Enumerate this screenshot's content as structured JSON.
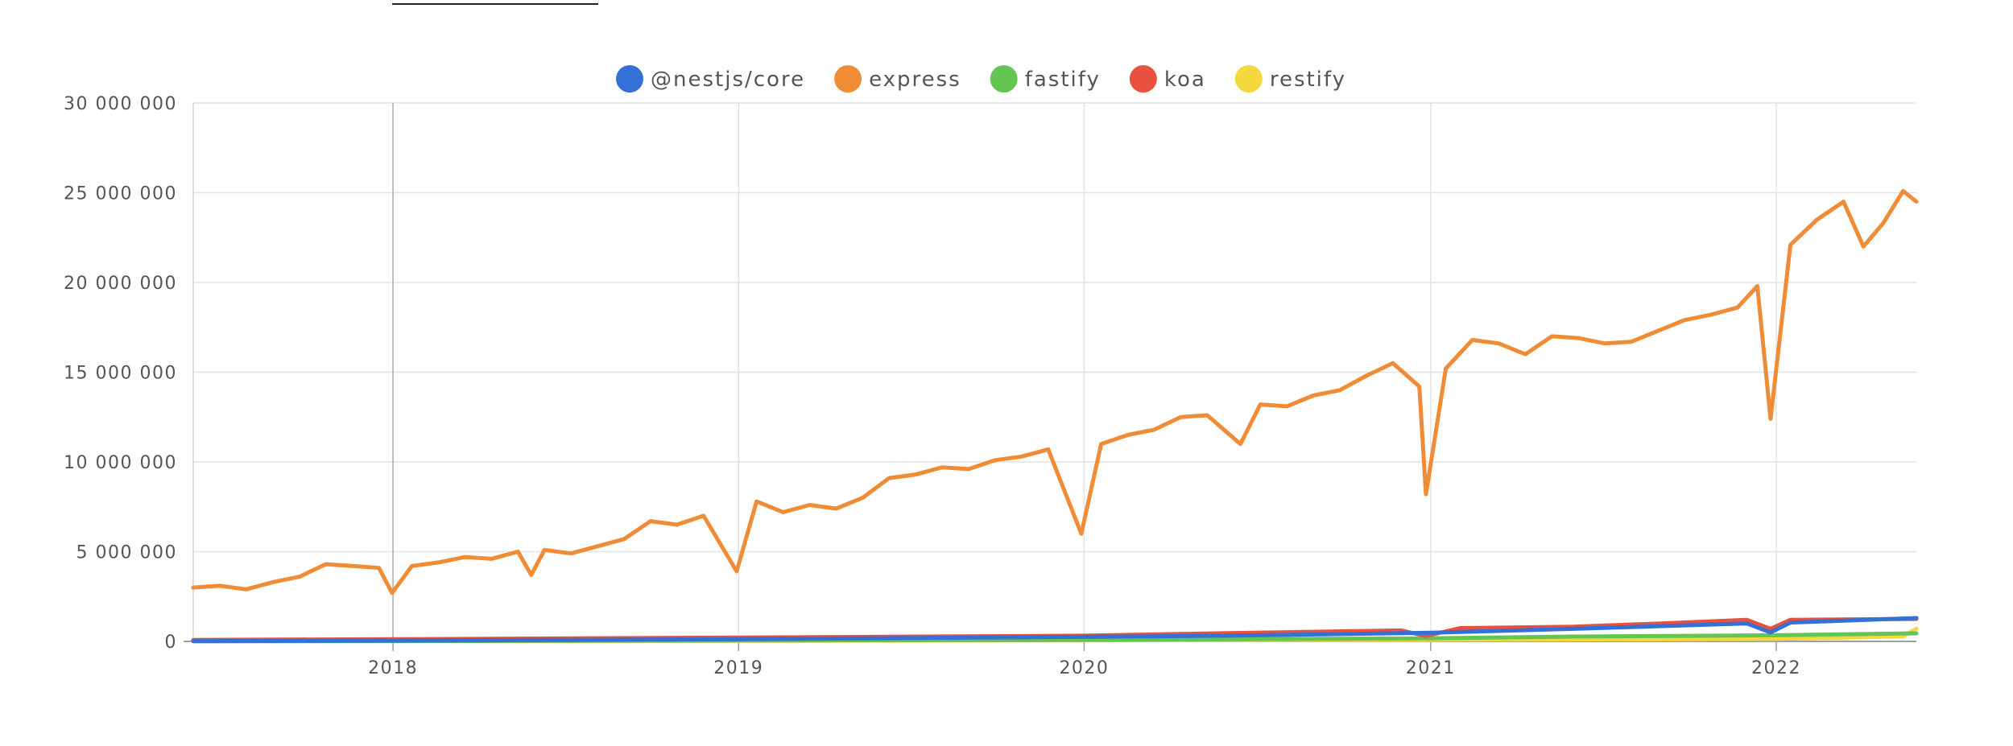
{
  "chart_data": {
    "type": "line",
    "title": "",
    "xlabel": "",
    "ylabel": "",
    "ylim": [
      0,
      30000000
    ],
    "xlim": [
      "2017-06-04",
      "2022-05-29"
    ],
    "y_ticks": [
      0,
      5000000,
      10000000,
      15000000,
      20000000,
      25000000,
      30000000
    ],
    "y_tick_labels": [
      "0",
      "5 000 000",
      "10 000 000",
      "15 000 000",
      "20 000 000",
      "25 000 000",
      "30 000 000"
    ],
    "x_ticks": [
      "2018-01-01",
      "2019-01-01",
      "2020-01-01",
      "2021-01-01",
      "2022-01-01"
    ],
    "x_tick_labels": [
      "2018",
      "2019",
      "2020",
      "2021",
      "2022"
    ],
    "grid": true,
    "legend": "top",
    "series": [
      {
        "name": "@nestjs/core",
        "color": "#3371d6",
        "points": [
          [
            "2017-06-04",
            20000
          ],
          [
            "2018-01-01",
            40000
          ],
          [
            "2019-01-01",
            120000
          ],
          [
            "2020-01-01",
            250000
          ],
          [
            "2020-06-01",
            320000
          ],
          [
            "2021-01-01",
            480000
          ],
          [
            "2021-06-01",
            700000
          ],
          [
            "2021-12-01",
            1000000
          ],
          [
            "2021-12-26",
            500000
          ],
          [
            "2022-01-16",
            1050000
          ],
          [
            "2022-05-29",
            1300000
          ]
        ]
      },
      {
        "name": "express",
        "color": "#f08c36",
        "points": [
          [
            "2017-06-04",
            3000000
          ],
          [
            "2017-07-02",
            3100000
          ],
          [
            "2017-07-30",
            2900000
          ],
          [
            "2017-08-27",
            3300000
          ],
          [
            "2017-09-24",
            3600000
          ],
          [
            "2017-10-22",
            4300000
          ],
          [
            "2017-11-19",
            4200000
          ],
          [
            "2017-12-17",
            4100000
          ],
          [
            "2017-12-31",
            2700000
          ],
          [
            "2018-01-21",
            4200000
          ],
          [
            "2018-02-18",
            4400000
          ],
          [
            "2018-03-18",
            4700000
          ],
          [
            "2018-04-15",
            4600000
          ],
          [
            "2018-05-13",
            5000000
          ],
          [
            "2018-05-27",
            3700000
          ],
          [
            "2018-06-10",
            5100000
          ],
          [
            "2018-07-08",
            4900000
          ],
          [
            "2018-08-05",
            5300000
          ],
          [
            "2018-09-02",
            5700000
          ],
          [
            "2018-09-30",
            6700000
          ],
          [
            "2018-10-28",
            6500000
          ],
          [
            "2018-11-25",
            7000000
          ],
          [
            "2018-12-30",
            3900000
          ],
          [
            "2019-01-20",
            7800000
          ],
          [
            "2019-02-17",
            7200000
          ],
          [
            "2019-03-17",
            7600000
          ],
          [
            "2019-04-14",
            7400000
          ],
          [
            "2019-05-12",
            8000000
          ],
          [
            "2019-06-09",
            9100000
          ],
          [
            "2019-07-07",
            9300000
          ],
          [
            "2019-08-04",
            9700000
          ],
          [
            "2019-09-01",
            9600000
          ],
          [
            "2019-09-29",
            10100000
          ],
          [
            "2019-10-27",
            10300000
          ],
          [
            "2019-11-24",
            10700000
          ],
          [
            "2019-12-29",
            6000000
          ],
          [
            "2020-01-19",
            11000000
          ],
          [
            "2020-02-16",
            11500000
          ],
          [
            "2020-03-15",
            11800000
          ],
          [
            "2020-04-12",
            12500000
          ],
          [
            "2020-05-10",
            12600000
          ],
          [
            "2020-06-14",
            11000000
          ],
          [
            "2020-07-05",
            13200000
          ],
          [
            "2020-08-02",
            13100000
          ],
          [
            "2020-08-30",
            13700000
          ],
          [
            "2020-09-27",
            14000000
          ],
          [
            "2020-10-25",
            14800000
          ],
          [
            "2020-11-22",
            15500000
          ],
          [
            "2020-12-20",
            14200000
          ],
          [
            "2020-12-27",
            8200000
          ],
          [
            "2021-01-17",
            15200000
          ],
          [
            "2021-02-14",
            16800000
          ],
          [
            "2021-03-14",
            16600000
          ],
          [
            "2021-04-11",
            16000000
          ],
          [
            "2021-05-09",
            17000000
          ],
          [
            "2021-06-06",
            16900000
          ],
          [
            "2021-07-04",
            16600000
          ],
          [
            "2021-08-01",
            16700000
          ],
          [
            "2021-08-29",
            17300000
          ],
          [
            "2021-09-26",
            17900000
          ],
          [
            "2021-10-24",
            18200000
          ],
          [
            "2021-11-21",
            18600000
          ],
          [
            "2021-12-12",
            19800000
          ],
          [
            "2021-12-26",
            12400000
          ],
          [
            "2022-01-16",
            22100000
          ],
          [
            "2022-02-13",
            23500000
          ],
          [
            "2022-03-13",
            24500000
          ],
          [
            "2022-04-03",
            22000000
          ],
          [
            "2022-04-24",
            23300000
          ],
          [
            "2022-05-15",
            25100000
          ],
          [
            "2022-05-29",
            24500000
          ]
        ]
      },
      {
        "name": "fastify",
        "color": "#63c652",
        "points": [
          [
            "2017-06-04",
            10000
          ],
          [
            "2018-01-01",
            20000
          ],
          [
            "2019-01-01",
            50000
          ],
          [
            "2020-01-01",
            80000
          ],
          [
            "2021-01-01",
            170000
          ],
          [
            "2021-06-01",
            270000
          ],
          [
            "2022-01-01",
            340000
          ],
          [
            "2022-05-29",
            450000
          ]
        ]
      },
      {
        "name": "koa",
        "color": "#e8513f",
        "points": [
          [
            "2017-06-04",
            80000
          ],
          [
            "2018-01-01",
            120000
          ],
          [
            "2019-01-01",
            210000
          ],
          [
            "2020-01-01",
            320000
          ],
          [
            "2020-06-01",
            460000
          ],
          [
            "2020-12-01",
            610000
          ],
          [
            "2020-12-27",
            300000
          ],
          [
            "2021-02-01",
            740000
          ],
          [
            "2021-06-01",
            820000
          ],
          [
            "2021-09-01",
            1000000
          ],
          [
            "2021-12-01",
            1200000
          ],
          [
            "2021-12-26",
            700000
          ],
          [
            "2022-01-16",
            1200000
          ],
          [
            "2022-05-29",
            1250000
          ]
        ]
      },
      {
        "name": "restify",
        "color": "#f5d83e",
        "points": [
          [
            "2017-06-04",
            10000
          ],
          [
            "2019-01-01",
            30000
          ],
          [
            "2020-01-01",
            60000
          ],
          [
            "2021-01-01",
            90000
          ],
          [
            "2022-01-01",
            140000
          ],
          [
            "2022-05-15",
            280000
          ],
          [
            "2022-05-29",
            700000
          ]
        ]
      }
    ]
  }
}
